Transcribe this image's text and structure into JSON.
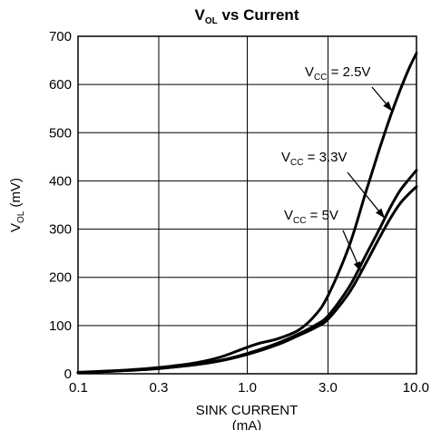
{
  "chart_data": {
    "type": "line",
    "title": {
      "main": "V",
      "sub": "OL",
      "rest": " vs Current"
    },
    "xlabel": {
      "line1": "SINK CURRENT",
      "line2": "(mA)"
    },
    "ylabel": {
      "main": "V",
      "sub": "OL",
      "rest": " (mV)"
    },
    "x_scale": "log",
    "xlim": [
      0.1,
      10.0
    ],
    "ylim": [
      0,
      700
    ],
    "x_ticks": [
      {
        "value": 0.1,
        "label": "0.1"
      },
      {
        "value": 0.3,
        "label": "0.3"
      },
      {
        "value": 1.0,
        "label": "1.0"
      },
      {
        "value": 3.0,
        "label": "3.0"
      },
      {
        "value": 10.0,
        "label": "10.0"
      }
    ],
    "y_ticks": [
      {
        "value": 0,
        "label": "0"
      },
      {
        "value": 100,
        "label": "100"
      },
      {
        "value": 200,
        "label": "200"
      },
      {
        "value": 300,
        "label": "300"
      },
      {
        "value": 400,
        "label": "400"
      },
      {
        "value": 500,
        "label": "500"
      },
      {
        "value": 600,
        "label": "600"
      },
      {
        "value": 700,
        "label": "700"
      }
    ],
    "grid": true,
    "series": [
      {
        "name": "VCC = 2.5V",
        "x": [
          0.1,
          0.2,
          0.3,
          0.5,
          0.7,
          1.0,
          1.2,
          1.5,
          2.0,
          2.5,
          3.0,
          4.0,
          5.0,
          6.0,
          7.0,
          8.0,
          9.0,
          10.0
        ],
        "y": [
          3,
          8,
          13,
          23,
          35,
          55,
          64,
          72,
          90,
          120,
          162,
          265,
          375,
          463,
          533,
          588,
          632,
          665
        ]
      },
      {
        "name": "VCC = 3.3V",
        "x": [
          0.1,
          0.2,
          0.3,
          0.5,
          0.7,
          1.0,
          1.5,
          2.0,
          2.5,
          3.0,
          4.0,
          5.0,
          6.0,
          7.0,
          8.0,
          9.0,
          10.0
        ],
        "y": [
          2,
          7,
          11,
          19,
          28,
          42,
          63,
          82,
          100,
          120,
          180,
          245,
          298,
          345,
          380,
          403,
          422
        ]
      },
      {
        "name": "VCC = 5V",
        "x": [
          0.1,
          0.2,
          0.3,
          0.5,
          0.7,
          1.0,
          1.5,
          2.0,
          2.5,
          3.0,
          4.0,
          5.0,
          6.0,
          7.0,
          8.0,
          9.0,
          10.0
        ],
        "y": [
          2,
          7,
          11,
          19,
          27,
          40,
          60,
          79,
          95,
          113,
          168,
          228,
          280,
          322,
          353,
          373,
          388
        ]
      }
    ],
    "annotations": [
      {
        "series": 0,
        "main": "V",
        "sub": "CC",
        "rest": " = 2.5V",
        "arrow_to_x": 7.2
      },
      {
        "series": 1,
        "main": "V",
        "sub": "CC",
        "rest": " = 3.3V",
        "arrow_to_x": 6.5
      },
      {
        "series": 2,
        "main": "V",
        "sub": "CC",
        "rest": " = 5V",
        "arrow_to_x": 4.7
      }
    ]
  }
}
